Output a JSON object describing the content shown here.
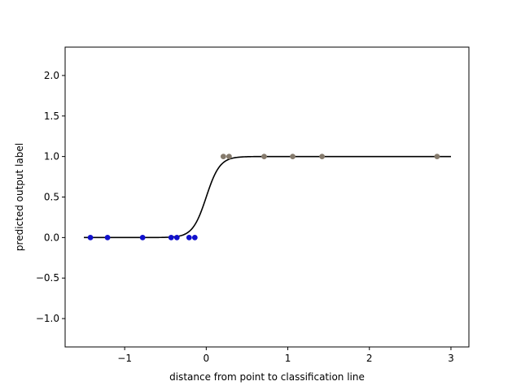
{
  "chart_data": {
    "type": "scatter",
    "title": "",
    "xlabel": "distance from point to classification line",
    "ylabel": "predicted output label",
    "xlim": [
      -1.73,
      3.22
    ],
    "ylim": [
      -1.35,
      2.35
    ],
    "x_ticks": [
      -1,
      0,
      1,
      2,
      3
    ],
    "x_tick_labels": [
      "−1",
      "0",
      "1",
      "2",
      "3"
    ],
    "y_ticks": [
      -1.0,
      -0.5,
      0.0,
      0.5,
      1.0,
      1.5,
      2.0
    ],
    "y_tick_labels": [
      "−1.0",
      "−0.5",
      "0.0",
      "0.5",
      "1.0",
      "1.5",
      "2.0"
    ],
    "grid": false,
    "legend": "none",
    "series": [
      {
        "kind": "points",
        "color": "#1010cc",
        "x": [
          -1.42,
          -1.21,
          -0.78,
          -0.43,
          -0.36,
          -0.21,
          -0.14
        ],
        "y": [
          0,
          0,
          0,
          0,
          0,
          0,
          0
        ]
      },
      {
        "kind": "points",
        "color": "#857a6c",
        "x": [
          0.21,
          0.28,
          0.71,
          1.06,
          1.42,
          2.83
        ],
        "y": [
          1,
          1,
          1,
          1,
          1,
          1
        ]
      },
      {
        "kind": "logistic_curve",
        "color": "#000000",
        "x_range": [
          -1.5,
          3.0
        ],
        "midpoint": 0.0,
        "steepness": 12,
        "y": [
          0.0,
          1.0
        ]
      }
    ]
  }
}
